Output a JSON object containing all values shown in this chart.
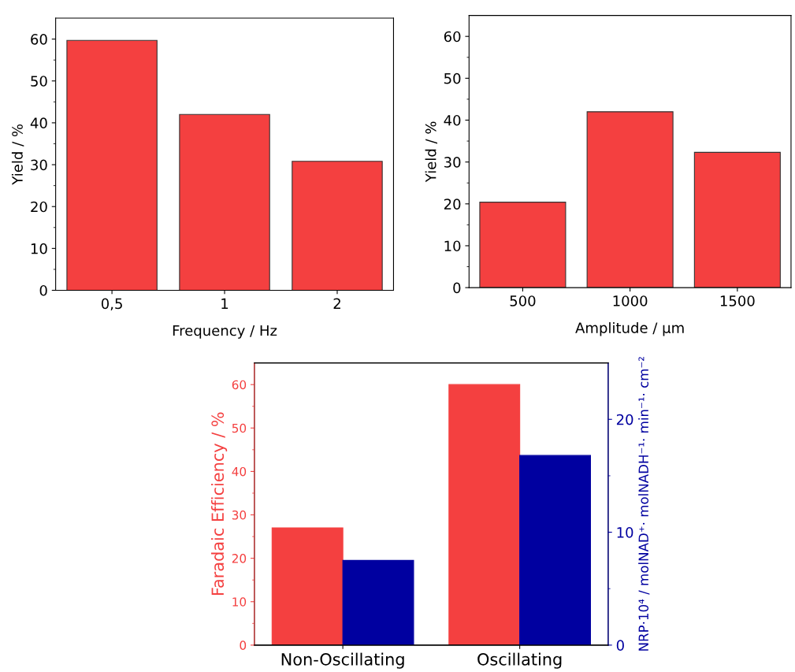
{
  "chart_data": [
    {
      "type": "bar",
      "xlabel": "Frequency / Hz",
      "ylabel": "Yield / %",
      "categories": [
        "0,5",
        "1",
        "2"
      ],
      "series": [
        {
          "color": "#f44040",
          "values": [
            59.7,
            42,
            30.8
          ]
        }
      ],
      "ylim": [
        0,
        65
      ],
      "yticks": [
        0,
        10,
        20,
        30,
        40,
        50,
        60
      ],
      "grid": false
    },
    {
      "type": "bar",
      "xlabel": "Amplitude / µm",
      "ylabel": "Yield / %",
      "categories": [
        "500",
        "1000",
        "1500"
      ],
      "series": [
        {
          "color": "#f44040",
          "values": [
            20.4,
            42,
            32.3
          ]
        }
      ],
      "ylim": [
        0,
        65
      ],
      "yticks": [
        0,
        10,
        20,
        30,
        40,
        50,
        60
      ],
      "grid": false
    },
    {
      "type": "bar",
      "ylabel": "Faradaic Efficiency / %",
      "y2label": "NRP·10⁴ / molNAD⁺· molNADH⁻¹· min⁻¹· cm⁻²",
      "categories": [
        "Non-Oscillating",
        "Oscillating"
      ],
      "series": [
        {
          "color": "#f44040",
          "values": [
            27,
            60
          ]
        },
        {
          "color": "#0000a0",
          "values": [
            7.5,
            16.8
          ],
          "axis": "y2"
        }
      ],
      "ylim": [
        0,
        65
      ],
      "yticks": [
        0,
        10,
        20,
        30,
        40,
        50,
        60
      ],
      "y2lim": [
        0,
        25
      ],
      "y2ticks": [
        0,
        10,
        20
      ],
      "grid": false
    }
  ]
}
